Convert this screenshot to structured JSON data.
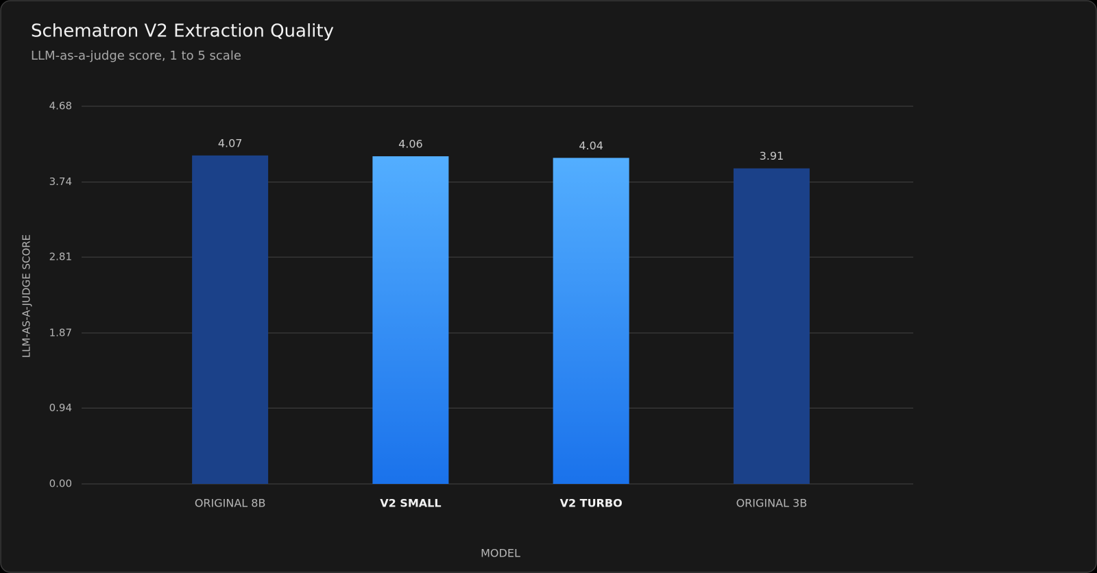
{
  "chart_data": {
    "type": "bar",
    "title": "Schematron V2 Extraction Quality",
    "subtitle": "LLM-as-a-judge score, 1 to 5 scale",
    "x_label": "MODEL",
    "y_label": "LLM-AS-A-JUDGE SCORE",
    "categories": [
      "ORIGINAL 8B",
      "V2 SMALL",
      "V2 TURBO",
      "ORIGINAL 3B"
    ],
    "values": [
      4.07,
      4.06,
      4.04,
      3.91
    ],
    "colors": [
      [
        "#1b4189",
        "#1b4189"
      ],
      [
        "#53aeff",
        "#1a72eb"
      ],
      [
        "#53aeff",
        "#1a72eb"
      ],
      [
        "#1b4189",
        "#1b4189"
      ]
    ],
    "highlight": [
      false,
      true,
      true,
      false
    ],
    "ylim": [
      0,
      4.68
    ],
    "yticks": [
      {
        "value": 0,
        "label": "0.00"
      },
      0.94,
      1.87,
      2.81,
      3.74,
      4.68
    ],
    "grid": true
  }
}
